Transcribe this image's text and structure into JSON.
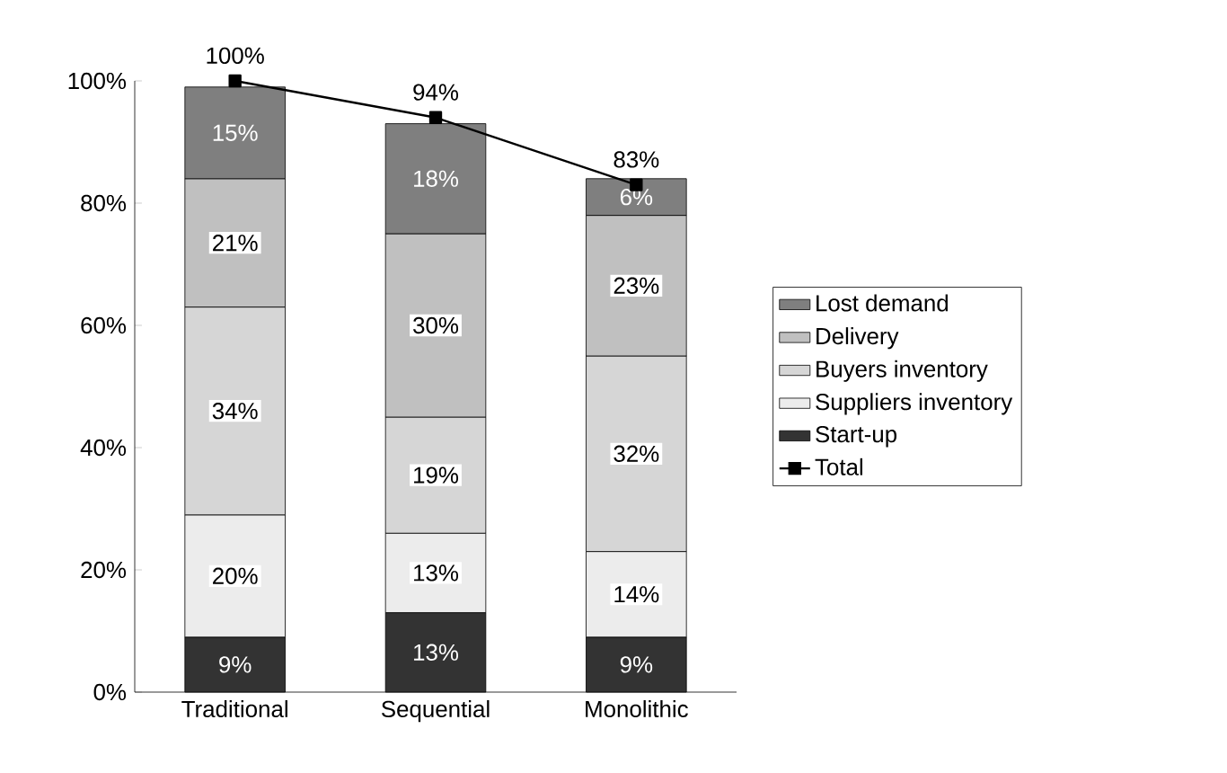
{
  "chart_data": {
    "type": "bar",
    "stacked": true,
    "categories": [
      "Traditional",
      "Sequential",
      "Monolithic"
    ],
    "ylim": [
      0,
      100
    ],
    "yticks": [
      {
        "value": 0,
        "label": "0%"
      },
      {
        "value": 20,
        "label": "20%"
      },
      {
        "value": 40,
        "label": "40%"
      },
      {
        "value": 60,
        "label": "60%"
      },
      {
        "value": 80,
        "label": "80%"
      },
      {
        "value": 100,
        "label": "100%"
      }
    ],
    "legend": "right",
    "grid": false,
    "series": [
      {
        "name": "Start-up",
        "color": "#333333",
        "values": [
          9,
          13,
          9
        ],
        "value_labels": [
          "9%",
          "13%",
          "9%"
        ]
      },
      {
        "name": "Suppliers inventory",
        "color": "#ececec",
        "values": [
          20,
          13,
          14
        ],
        "value_labels": [
          "20%",
          "13%",
          "14%"
        ]
      },
      {
        "name": "Buyers inventory",
        "color": "#d6d6d6",
        "values": [
          34,
          19,
          32
        ],
        "value_labels": [
          "34%",
          "19%",
          "32%"
        ]
      },
      {
        "name": "Delivery",
        "color": "#c0c0c0",
        "values": [
          21,
          30,
          23
        ],
        "value_labels": [
          "21%",
          "30%",
          "23%"
        ]
      },
      {
        "name": "Lost demand",
        "color": "#7f7f7f",
        "values": [
          15,
          18,
          6
        ],
        "value_labels": [
          "15%",
          "18%",
          "6%"
        ]
      },
      {
        "name": "Total",
        "type": "line",
        "color": "#000000",
        "marker": "square",
        "values": [
          100,
          94,
          83
        ],
        "value_labels": [
          "100%",
          "94%",
          "83%"
        ]
      }
    ]
  }
}
